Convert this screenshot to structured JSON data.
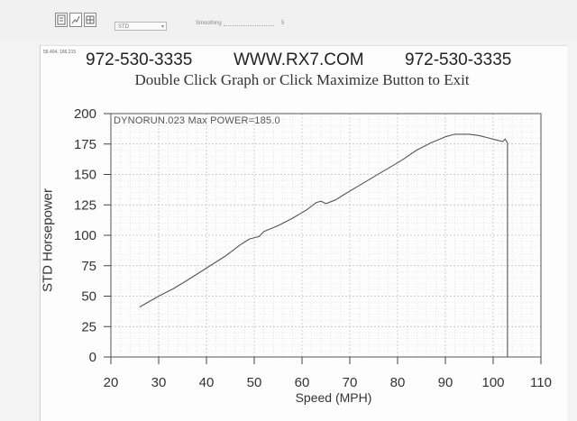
{
  "toolbar": {
    "select_value": "STD",
    "smoothing_label": "Smoothing",
    "smoothing_value": "5"
  },
  "corner_readout": "58.404, 186.215",
  "header": {
    "phone_left": "972-530-3335",
    "website": "WWW.RX7.COM",
    "phone_right": "972-530-3335",
    "instruction": "Double Click Graph or Click Maximize Button to Exit"
  },
  "chart_data": {
    "type": "line",
    "title": "",
    "run_label": "DYNORUN.023  Max POWER=185.0",
    "xlabel": "Speed (MPH)",
    "ylabel": "STD Horsepower",
    "xlim": [
      20,
      110
    ],
    "ylim": [
      0,
      200
    ],
    "x_ticks": [
      20,
      30,
      40,
      50,
      60,
      70,
      80,
      90,
      100,
      110
    ],
    "y_ticks": [
      0,
      25,
      50,
      75,
      100,
      125,
      150,
      175,
      200
    ],
    "grid": true,
    "series": [
      {
        "name": "",
        "color": "#555555",
        "points": [
          [
            26,
            41
          ],
          [
            30,
            50
          ],
          [
            33,
            56
          ],
          [
            36,
            63
          ],
          [
            40,
            73
          ],
          [
            44,
            83
          ],
          [
            47,
            92
          ],
          [
            49,
            97
          ],
          [
            51,
            99
          ],
          [
            52,
            103
          ],
          [
            55,
            108
          ],
          [
            58,
            114
          ],
          [
            61,
            121
          ],
          [
            63,
            127
          ],
          [
            64,
            128
          ],
          [
            65,
            126
          ],
          [
            67,
            129
          ],
          [
            69,
            134
          ],
          [
            72,
            141
          ],
          [
            75,
            148
          ],
          [
            78,
            155
          ],
          [
            81,
            162
          ],
          [
            84,
            170
          ],
          [
            87,
            176
          ],
          [
            90,
            181
          ],
          [
            92,
            183
          ],
          [
            95,
            183
          ],
          [
            97,
            182
          ],
          [
            99,
            180
          ],
          [
            101,
            178
          ],
          [
            102,
            177
          ],
          [
            102.5,
            179
          ],
          [
            103,
            176
          ],
          [
            103,
            0
          ]
        ]
      }
    ]
  }
}
